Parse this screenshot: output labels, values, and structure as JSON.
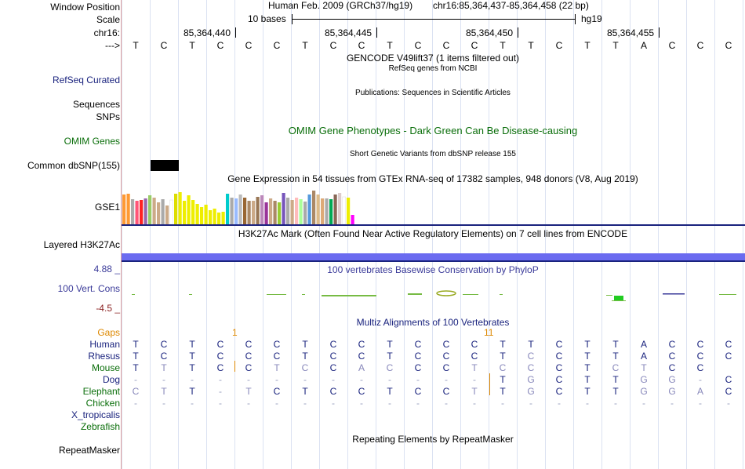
{
  "labels": {
    "window_position": "Window Position",
    "scale": "Scale",
    "chrom": "chr16:",
    "arrow": "--->",
    "refseq": "RefSeq Curated",
    "sequences": "Sequences",
    "snps": "SNPs",
    "omim": "OMIM Genes",
    "common_dbsnp": "Common dbSNP(155)",
    "gse1": "GSE1",
    "h3k27ac": "Layered H3K27Ac",
    "cons_max": "4.88 _",
    "cons_label": "100 Vert. Cons",
    "cons_min": "-4.5 _",
    "gaps": "Gaps",
    "species": [
      "Human",
      "Rhesus",
      "Mouse",
      "Dog",
      "Elephant",
      "Chicken",
      "X_tropicalis",
      "Zebrafish"
    ],
    "repeatmasker": "RepeatMasker"
  },
  "header": {
    "assembly": "Human Feb. 2009 (GRCh37/hg19)",
    "position": "chr16:85,364,437-85,364,458 (22 bp)",
    "scale_text": "10 bases",
    "scale_db": "hg19",
    "ticks": [
      "85,364,440",
      "85,364,445",
      "85,364,450",
      "85,364,455"
    ]
  },
  "sequence": [
    "T",
    "C",
    "T",
    "C",
    "C",
    "C",
    "T",
    "C",
    "C",
    "T",
    "C",
    "C",
    "C",
    "T",
    "T",
    "C",
    "T",
    "T",
    "A",
    "C",
    "C",
    "C"
  ],
  "titles": {
    "gencode": "GENCODE V49lift37 (1 items filtered out)",
    "refseq": "RefSeq genes from NCBI",
    "publications": "Publications: Sequences in Scientific Articles",
    "omim": "OMIM Gene Phenotypes - Dark Green Can Be Disease-causing",
    "dbsnp": "Short Genetic Variants from dbSNP release 155",
    "gtex": "Gene Expression in 54 tissues from GTEx RNA-seq of 17382 samples, 948 donors (V8, Aug 2019)",
    "h3k27ac": "H3K27Ac Mark (Often Found Near Active Regulatory Elements) on 7 cell lines from ENCODE",
    "phylop": "100 vertebrates Basewise Conservation by PhyloP",
    "multiz": "Multiz Alignments of 100 Vertebrates",
    "repeatmasker": "Repeating Elements by RepeatMasker"
  },
  "gaps_values": [
    "1",
    "11"
  ],
  "alignments": {
    "human": [
      "T",
      "C",
      "T",
      "C",
      "C",
      "C",
      "T",
      "C",
      "C",
      "T",
      "C",
      "C",
      "C",
      "T",
      "T",
      "C",
      "T",
      "T",
      "A",
      "C",
      "C",
      "C"
    ],
    "rhesus": [
      "T",
      "C",
      "T",
      "C",
      "C",
      "C",
      "T",
      "C",
      "C",
      "T",
      "C",
      "C",
      "C",
      "T",
      "C",
      "C",
      "T",
      "T",
      "A",
      "C",
      "C",
      "C"
    ],
    "mouse": [
      "T",
      "T",
      "T",
      "C",
      "C",
      "T",
      "C",
      "C",
      "A",
      "C",
      "C",
      "C",
      "T",
      "C",
      "C",
      "C",
      "T",
      "C",
      "T",
      "C",
      "C",
      ""
    ],
    "dog": [
      "-",
      "-",
      "-",
      "-",
      "-",
      "-",
      "-",
      "-",
      "-",
      "-",
      "-",
      "-",
      "-",
      "T",
      "G",
      "C",
      "T",
      "T",
      "G",
      "G",
      "-",
      "C"
    ],
    "elephant": [
      "C",
      "T",
      "T",
      "-",
      "T",
      "C",
      "T",
      "C",
      "C",
      "T",
      "C",
      "C",
      "T",
      "T",
      "G",
      "C",
      "T",
      "T",
      "G",
      "G",
      "A",
      "C"
    ],
    "chicken": [
      "-",
      "-",
      "-",
      "-",
      "-",
      "-",
      "-",
      "-",
      "-",
      "-",
      "-",
      "-",
      "-",
      "-",
      "-",
      "-",
      "-",
      "-",
      "-",
      "-",
      "-",
      "-"
    ]
  },
  "gtex_values": [
    7.6,
    7.8,
    6.4,
    6.0,
    6.2,
    6.6,
    7.4,
    6.8,
    5.6,
    6.4,
    4.8,
    6.2,
    7.8,
    8.2,
    6.0,
    7.4,
    6.2,
    5.2,
    4.4,
    5.0,
    3.6,
    4.0,
    3.0,
    3.2,
    7.8,
    6.8,
    6.6,
    7.6,
    6.8,
    6.0,
    6.0,
    7.0,
    7.4,
    5.6,
    6.6,
    6.0,
    5.6,
    8.0,
    6.8,
    6.2,
    6.8,
    6.4,
    5.8,
    7.6,
    8.6,
    7.6,
    6.6,
    6.6,
    6.4,
    7.6,
    8.0,
    7.0,
    6.8,
    2.4
  ],
  "gtex_colors": [
    "#ff9933",
    "#ff9933",
    "#aaaaaa",
    "#ff5577",
    "#ff2222",
    "#9966aa",
    "#99cc66",
    "#ccaa88",
    "#ccaa88",
    "#aaaaaa",
    "#ccaa88",
    "#ffffff",
    "#dddd00",
    "#eeee00",
    "#eeee00",
    "#eeee00",
    "#eeee00",
    "#eeee00",
    "#eeee00",
    "#eeee00",
    "#eeee00",
    "#eeee00",
    "#eeee00",
    "#eeee00",
    "#00cccc",
    "#aaaaaa",
    "#99bbff",
    "#bbbbbb",
    "#996633",
    "#aa8866",
    "#ccaa88",
    "#997755",
    "#bb88bb",
    "#993399",
    "#ccaa88",
    "#aa8866",
    "#99cc33",
    "#7755bb",
    "#aaaaaa",
    "#ccaa88",
    "#ffbbbb",
    "#aaff99",
    "#aaaaaa",
    "#5599dd",
    "#aa8866",
    "#ddbb88",
    "#ddaa77",
    "#aaaaaa",
    "#00aa55",
    "#886655",
    "#ddcccc",
    "#ffffff",
    "#eeee00",
    "#ff00ff"
  ]
}
